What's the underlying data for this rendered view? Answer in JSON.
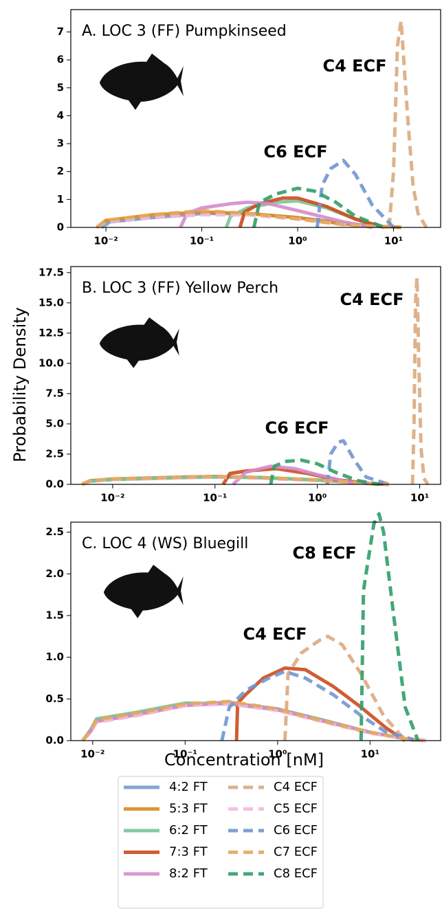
{
  "chart_data": [
    {
      "type": "line",
      "title": "A. LOC 3 (FF) Pumpkinseed",
      "log_x": true,
      "xlim": [
        0.0043,
        31
      ],
      "xticks": [
        {
          "value": 0.01,
          "label": "10⁻²"
        },
        {
          "value": 0.1,
          "label": "10⁻¹"
        },
        {
          "value": 1,
          "label": "10⁰"
        },
        {
          "value": 10,
          "label": "10¹"
        }
      ],
      "ylim": [
        0,
        7.8
      ],
      "yticks": [
        0,
        1,
        2,
        3,
        4,
        5,
        6,
        7
      ],
      "annotations": [
        "C4 ECF",
        "C6 ECF"
      ],
      "series": [
        {
          "color": "#7a9acb",
          "dash": false,
          "x": [
            0.009,
            0.011,
            0.03,
            0.1,
            0.3,
            1,
            3,
            8,
            12
          ],
          "values": [
            0,
            0.2,
            0.35,
            0.5,
            0.5,
            0.35,
            0.15,
            0.03,
            0
          ]
        },
        {
          "color": "#dd8a1e",
          "dash": false,
          "x": [
            0.008,
            0.01,
            0.03,
            0.1,
            0.3,
            1,
            3,
            8,
            12
          ],
          "values": [
            0,
            0.25,
            0.45,
            0.55,
            0.5,
            0.35,
            0.12,
            0.03,
            0
          ]
        },
        {
          "color": "#7cc49a",
          "dash": false,
          "x": [
            0.18,
            0.2,
            0.3,
            0.6,
            1,
            2,
            4,
            8
          ],
          "values": [
            0,
            0.4,
            0.7,
            0.9,
            0.95,
            0.7,
            0.3,
            0
          ]
        },
        {
          "color": "#cc4b1d",
          "dash": false,
          "x": [
            0.25,
            0.28,
            0.4,
            0.7,
            1,
            2,
            4,
            8
          ],
          "values": [
            0,
            0.55,
            0.85,
            1.05,
            1.05,
            0.75,
            0.3,
            0
          ]
        },
        {
          "color": "#d48ccb",
          "dash": false,
          "x": [
            0.06,
            0.07,
            0.1,
            0.2,
            0.3,
            0.5,
            1,
            3,
            6
          ],
          "values": [
            0,
            0.5,
            0.7,
            0.85,
            0.9,
            0.85,
            0.6,
            0.2,
            0
          ]
        },
        {
          "color": "#dcaa7e",
          "dash": true,
          "x": [
            9,
            10,
            11,
            12,
            14,
            16,
            18,
            22
          ],
          "values": [
            0,
            2,
            6.5,
            7.4,
            4,
            1.5,
            0.5,
            0
          ]
        },
        {
          "color": "#f4b9dc",
          "dash": true,
          "x": [
            0.008,
            0.01,
            0.03,
            0.1,
            0.3,
            1,
            3,
            10
          ],
          "values": [
            0,
            0.2,
            0.35,
            0.45,
            0.45,
            0.3,
            0.1,
            0
          ]
        },
        {
          "color": "#7196cf",
          "dash": true,
          "x": [
            1.6,
            1.8,
            2.2,
            3,
            4,
            6,
            10
          ],
          "values": [
            0,
            1.5,
            2.1,
            2.4,
            1.9,
            0.8,
            0
          ]
        },
        {
          "color": "#e3a85c",
          "dash": true,
          "x": [
            0.008,
            0.01,
            0.03,
            0.1,
            0.3,
            1,
            3,
            10
          ],
          "values": [
            0,
            0.25,
            0.45,
            0.6,
            0.5,
            0.3,
            0.1,
            0
          ]
        },
        {
          "color": "#2f9e68",
          "dash": true,
          "x": [
            0.35,
            0.4,
            0.6,
            1,
            1.5,
            2.5,
            4,
            8
          ],
          "values": [
            0,
            0.9,
            1.2,
            1.4,
            1.3,
            0.9,
            0.4,
            0
          ]
        }
      ]
    },
    {
      "type": "line",
      "title": "B. LOC 3 (FF) Yellow Perch",
      "log_x": true,
      "y_label": "Probability Density",
      "xlim": [
        0.0039,
        16
      ],
      "xticks": [
        {
          "value": 0.01,
          "label": "10⁻²"
        },
        {
          "value": 0.1,
          "label": "10⁻¹"
        },
        {
          "value": 1,
          "label": "10⁰"
        },
        {
          "value": 10,
          "label": "10¹"
        }
      ],
      "ylim": [
        0,
        18
      ],
      "yticks": [
        {
          "value": 0,
          "label": "0.0"
        },
        2.5,
        {
          "value": 5,
          "label": "5.0"
        },
        7.5,
        {
          "value": 10,
          "label": "10.0"
        },
        12.5,
        {
          "value": 15,
          "label": "15.0"
        },
        17.5
      ],
      "annotations": [
        "C4 ECF",
        "C6 ECF"
      ],
      "series": [
        {
          "color": "#7a9acb",
          "dash": false,
          "x": [
            0.005,
            0.006,
            0.01,
            0.05,
            0.1,
            0.3,
            1,
            3,
            5
          ],
          "values": [
            0,
            0.3,
            0.4,
            0.6,
            0.65,
            0.55,
            0.35,
            0.1,
            0
          ]
        },
        {
          "color": "#dd8a1e",
          "dash": false,
          "x": [
            0.005,
            0.006,
            0.01,
            0.05,
            0.1,
            0.3,
            1,
            3,
            5
          ],
          "values": [
            0,
            0.3,
            0.45,
            0.6,
            0.65,
            0.55,
            0.35,
            0.1,
            0
          ]
        },
        {
          "color": "#7cc49a",
          "dash": false,
          "x": [
            0.005,
            0.006,
            0.01,
            0.05,
            0.1,
            0.3,
            1,
            3,
            5
          ],
          "values": [
            0,
            0.25,
            0.4,
            0.55,
            0.6,
            0.55,
            0.35,
            0.1,
            0
          ]
        },
        {
          "color": "#cc4b1d",
          "dash": false,
          "x": [
            0.12,
            0.14,
            0.2,
            0.4,
            0.8,
            1.5,
            3,
            5
          ],
          "values": [
            0,
            0.9,
            1.1,
            1.3,
            0.9,
            0.4,
            0.1,
            0
          ]
        },
        {
          "color": "#d48ccb",
          "dash": false,
          "x": [
            0.15,
            0.2,
            0.35,
            0.6,
            1,
            2,
            4
          ],
          "values": [
            0,
            1,
            1.5,
            1.3,
            0.8,
            0.2,
            0
          ]
        },
        {
          "color": "#dcaa7e",
          "dash": true,
          "x": [
            8.5,
            8.8,
            9.1,
            9.4,
            9.8,
            10.3,
            11,
            12
          ],
          "values": [
            0,
            5,
            15,
            17.1,
            10,
            3,
            0.5,
            0
          ]
        },
        {
          "color": "#f4b9dc",
          "dash": true,
          "x": [
            0.005,
            0.006,
            0.01,
            0.05,
            0.1,
            0.3,
            1,
            3,
            5
          ],
          "values": [
            0,
            0.25,
            0.4,
            0.55,
            0.6,
            0.5,
            0.3,
            0.1,
            0
          ]
        },
        {
          "color": "#7196cf",
          "dash": true,
          "x": [
            1.25,
            1.35,
            1.6,
            1.8,
            2.3,
            3,
            5
          ],
          "values": [
            0,
            2.5,
            3.5,
            3.6,
            2,
            0.6,
            0
          ]
        },
        {
          "color": "#e3a85c",
          "dash": true,
          "x": [
            0.005,
            0.006,
            0.01,
            0.05,
            0.1,
            0.3,
            1,
            3,
            5
          ],
          "values": [
            0,
            0.3,
            0.45,
            0.6,
            0.65,
            0.55,
            0.35,
            0.1,
            0
          ]
        },
        {
          "color": "#2f9e68",
          "dash": true,
          "x": [
            0.35,
            0.38,
            0.5,
            0.7,
            1,
            1.5,
            2.5,
            4
          ],
          "values": [
            0,
            1.5,
            1.9,
            2,
            1.7,
            1,
            0.3,
            0
          ]
        }
      ]
    },
    {
      "type": "line",
      "title": "C. LOC 4 (WS) Bluegill",
      "log_x": true,
      "x_label": "Concentration [nM]",
      "legend": "below",
      "xlim": [
        0.0058,
        58
      ],
      "xticks": [
        {
          "value": 0.01,
          "label": "10⁻²"
        },
        {
          "value": 0.1,
          "label": "10⁻¹"
        },
        {
          "value": 1,
          "label": "10⁰"
        },
        {
          "value": 10,
          "label": "10¹"
        }
      ],
      "ylim": [
        0,
        2.62
      ],
      "yticks": [
        {
          "value": 0,
          "label": "0.0"
        },
        0.5,
        {
          "value": 1,
          "label": "1.0"
        },
        1.5,
        {
          "value": 2,
          "label": "2.0"
        },
        2.5
      ],
      "annotations": [
        "C8 ECF",
        "C4 ECF"
      ],
      "series": [
        {
          "name": "4:2 FT",
          "color": "#7a9acb",
          "dash": false,
          "x": [
            0.0078,
            0.0095,
            0.011,
            0.03,
            0.1,
            0.3,
            1,
            3,
            10,
            25,
            40
          ],
          "values": [
            0,
            0.12,
            0.25,
            0.33,
            0.44,
            0.45,
            0.38,
            0.25,
            0.1,
            0.02,
            0
          ]
        },
        {
          "name": "5:3 FT",
          "color": "#dd8a1e",
          "dash": false,
          "x": [
            0.0078,
            0.0095,
            0.011,
            0.03,
            0.1,
            0.3,
            1,
            3,
            10,
            25,
            40
          ],
          "values": [
            0,
            0.12,
            0.24,
            0.32,
            0.43,
            0.46,
            0.37,
            0.24,
            0.1,
            0.02,
            0
          ]
        },
        {
          "name": "6:2 FT",
          "color": "#7cc49a",
          "dash": false,
          "x": [
            0.0078,
            0.0095,
            0.011,
            0.03,
            0.1,
            0.3,
            1,
            3,
            10,
            25,
            40
          ],
          "values": [
            0,
            0.13,
            0.26,
            0.34,
            0.45,
            0.44,
            0.37,
            0.25,
            0.1,
            0.02,
            0
          ]
        },
        {
          "name": "7:3 FT",
          "color": "#cc4b1d",
          "dash": false,
          "x": [
            0.36,
            0.37,
            0.45,
            0.7,
            1.2,
            2,
            4,
            8,
            15,
            24
          ],
          "values": [
            0,
            0.45,
            0.55,
            0.75,
            0.87,
            0.85,
            0.65,
            0.4,
            0.15,
            0
          ]
        },
        {
          "name": "8:2 FT",
          "color": "#d48ccb",
          "dash": false,
          "x": [
            0.0078,
            0.0095,
            0.011,
            0.03,
            0.1,
            0.3,
            1,
            3,
            10,
            25,
            40
          ],
          "values": [
            0,
            0.11,
            0.23,
            0.31,
            0.42,
            0.45,
            0.37,
            0.24,
            0.1,
            0.02,
            0
          ]
        },
        {
          "name": "C4 ECF",
          "color": "#dcaa7e",
          "dash": true,
          "x": [
            1.2,
            1.3,
            1.8,
            2.8,
            3.5,
            5,
            8,
            14,
            22,
            30
          ],
          "values": [
            0,
            0.8,
            1.05,
            1.2,
            1.25,
            1.15,
            0.8,
            0.3,
            0.05,
            0
          ]
        },
        {
          "name": "C5 ECF",
          "color": "#f4b9dc",
          "dash": true,
          "x": [
            0.0078,
            0.0095,
            0.011,
            0.03,
            0.1,
            0.3,
            1,
            3,
            10,
            25,
            40
          ],
          "values": [
            0,
            0.1,
            0.22,
            0.3,
            0.42,
            0.44,
            0.36,
            0.23,
            0.09,
            0.02,
            0
          ]
        },
        {
          "name": "C6 ECF",
          "color": "#7196cf",
          "dash": true,
          "x": [
            0.25,
            0.3,
            0.45,
            0.8,
            1.2,
            2,
            4,
            8,
            15,
            33
          ],
          "values": [
            0,
            0.4,
            0.6,
            0.75,
            0.83,
            0.75,
            0.55,
            0.3,
            0.1,
            0
          ]
        },
        {
          "name": "C7 ECF",
          "color": "#e3a85c",
          "dash": true,
          "x": [
            0.0078,
            0.0095,
            0.011,
            0.03,
            0.1,
            0.3,
            1,
            3,
            10,
            25,
            40
          ],
          "values": [
            0,
            0.12,
            0.25,
            0.33,
            0.44,
            0.47,
            0.38,
            0.24,
            0.1,
            0.02,
            0
          ]
        },
        {
          "name": "C8 ECF",
          "color": "#2f9e68",
          "dash": true,
          "x": [
            8,
            8.5,
            9.5,
            11,
            12.5,
            14,
            18,
            24,
            33
          ],
          "values": [
            0,
            1.8,
            2.15,
            2.6,
            2.72,
            2.5,
            1.5,
            0.4,
            0
          ]
        }
      ]
    }
  ]
}
